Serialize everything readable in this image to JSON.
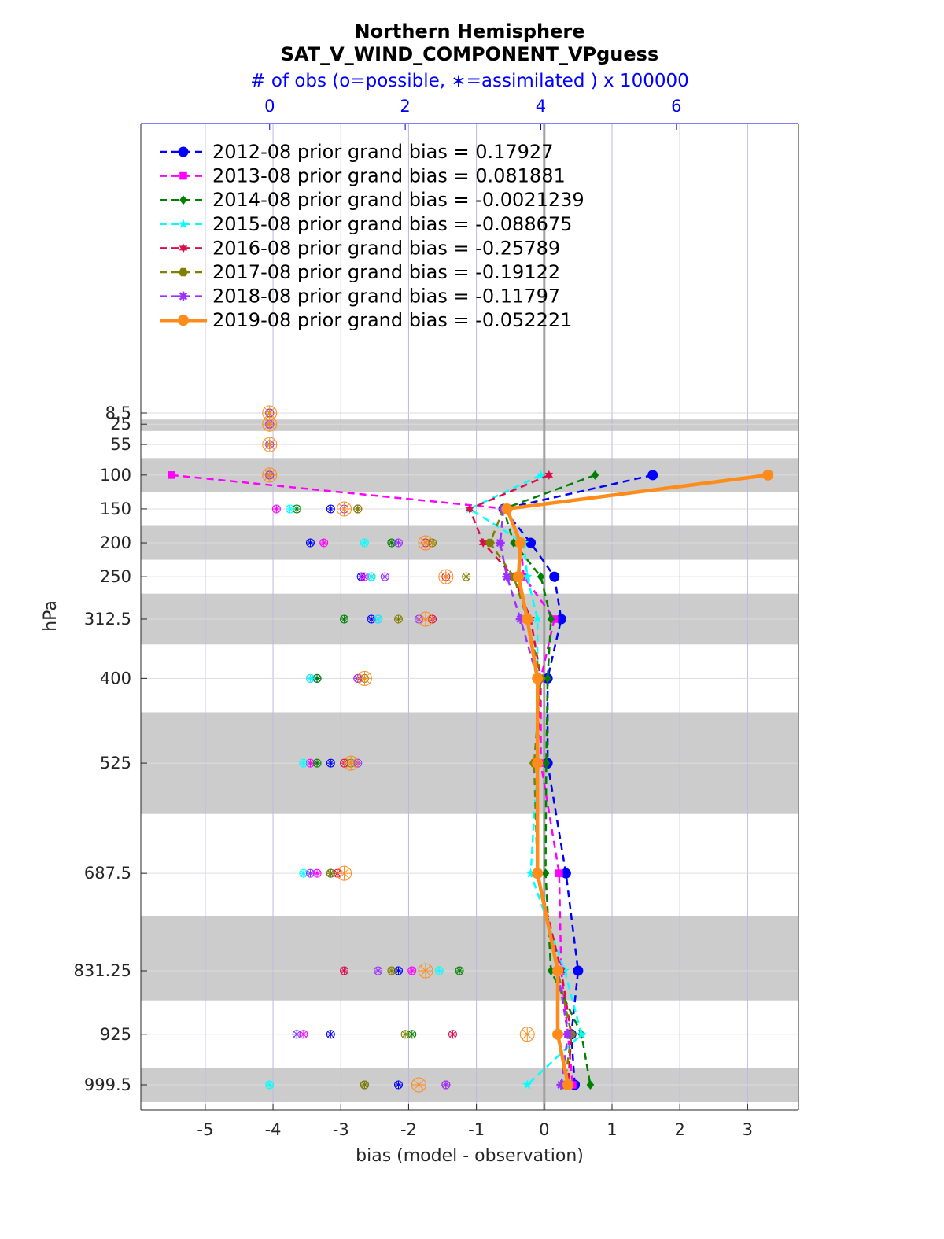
{
  "chart_data": {
    "type": "line",
    "title": "Northern Hemisphere",
    "subtitle": "SAT_V_WIND_COMPONENT_VPguess",
    "top_axis_label": "# of obs (o=possible, ∗=assimilated ) x 100000",
    "xlabel": "bias (model - observation)",
    "ylabel": "hPa",
    "xlim": [
      -5.95,
      3.75
    ],
    "top_xlim": [
      -1.9,
      7.8
    ],
    "x_ticks": [
      -5,
      -4,
      -3,
      -2,
      -1,
      0,
      1,
      2,
      3
    ],
    "top_ticks": [
      0,
      2,
      4,
      6
    ],
    "levels": [
      8.5,
      25,
      55,
      100,
      150,
      200,
      250,
      312.5,
      400,
      525,
      687.5,
      831.25,
      925,
      999.5
    ],
    "level_labels": [
      "8.5",
      "25",
      "55",
      "100",
      "150",
      "200",
      "250",
      "312.5",
      "400",
      "525",
      "687.5",
      "831.25",
      "925",
      "999.5"
    ],
    "shaded_bands": [
      [
        18,
        35
      ],
      [
        75,
        125
      ],
      [
        175,
        225
      ],
      [
        275,
        350
      ],
      [
        450,
        600
      ],
      [
        750,
        875
      ],
      [
        975,
        1025
      ]
    ],
    "series": [
      {
        "name": "2012-08",
        "legend": "2012-08 prior grand bias = 0.17927",
        "color": "#0000ff",
        "marker": "circle",
        "width": 2,
        "values": [
          null,
          null,
          null,
          1.6,
          -0.6,
          -0.2,
          0.15,
          0.25,
          0.05,
          0.05,
          0.32,
          0.5,
          0.4,
          0.45
        ],
        "obs_possible": [
          0,
          0,
          0,
          0,
          0.9,
          0.6,
          1.35,
          1.5,
          0.7,
          0.9,
          0.9,
          1.9,
          0.9,
          1.9
        ]
      },
      {
        "name": "2013-08",
        "legend": "2013-08 prior grand bias = 0.081881",
        "color": "#ff00ff",
        "marker": "square",
        "width": 2,
        "values": [
          null,
          null,
          null,
          -5.5,
          -0.55,
          -0.35,
          -0.3,
          0.15,
          -0.05,
          -0.05,
          0.22,
          0.25,
          0.35,
          0.42
        ],
        "obs_possible": [
          0,
          0,
          0,
          0,
          0.1,
          0.8,
          1.4,
          1.6,
          0.6,
          0.6,
          0.7,
          2.1,
          0.5,
          1.4
        ]
      },
      {
        "name": "2014-08",
        "legend": "2014-08 prior grand bias = -0.0021239",
        "color": "#008000",
        "marker": "diamond",
        "width": 2,
        "values": [
          null,
          null,
          null,
          0.75,
          -0.6,
          -0.45,
          -0.05,
          0.1,
          0.05,
          0.03,
          0.02,
          0.1,
          0.55,
          0.68
        ],
        "obs_possible": [
          0,
          0,
          0,
          0,
          0.4,
          1.8,
          1.5,
          1.1,
          0.7,
          0.7,
          0.9,
          2.8,
          2.1,
          1.4
        ]
      },
      {
        "name": "2015-08",
        "legend": "2015-08 prior grand bias = -0.088675",
        "color": "#00ffff",
        "marker": "star",
        "width": 2,
        "values": [
          null,
          null,
          null,
          -0.05,
          -1.1,
          -0.3,
          -0.25,
          -0.1,
          -0.1,
          -0.1,
          -0.2,
          0.3,
          0.55,
          -0.25
        ],
        "obs_possible": [
          0,
          0,
          0,
          0,
          0.3,
          1.4,
          1.5,
          1.6,
          0.6,
          0.5,
          0.5,
          2.5,
          0.4,
          0
        ]
      },
      {
        "name": "2016-08",
        "legend": "2016-08 prior grand bias = -0.25789",
        "color": "#d80f4b",
        "marker": "star6",
        "width": 2,
        "values": [
          null,
          null,
          null,
          0.07,
          -1.1,
          -0.9,
          -0.45,
          -0.2,
          -0.05,
          -0.1,
          -0.1,
          0.25,
          0.4,
          0.35
        ],
        "obs_possible": [
          0,
          0,
          0,
          0,
          1.3,
          2.3,
          2.6,
          2.4,
          1.3,
          1.1,
          1.0,
          1.1,
          2.7,
          2.6
        ]
      },
      {
        "name": "2017-08",
        "legend": "2017-08 prior grand bias = -0.19122",
        "color": "#808000",
        "marker": "hexagon",
        "width": 2,
        "values": [
          null,
          null,
          null,
          null,
          -0.6,
          -0.8,
          -0.45,
          -0.25,
          -0.05,
          -0.15,
          -0.1,
          0.2,
          0.4,
          0.3
        ],
        "obs_possible": [
          0,
          0,
          0,
          0,
          1.3,
          2.4,
          2.9,
          1.9,
          1.4,
          1.2,
          0.9,
          1.8,
          2.0,
          1.4
        ]
      },
      {
        "name": "2018-08",
        "legend": "2018-08 prior grand bias = -0.11797",
        "color": "#9a32ff",
        "marker": "asterisk",
        "width": 2,
        "values": [
          null,
          null,
          null,
          null,
          -0.6,
          -0.65,
          -0.55,
          -0.35,
          -0.1,
          -0.1,
          -0.1,
          0.2,
          0.35,
          0.25
        ],
        "obs_possible": [
          0,
          0,
          0,
          0,
          1.1,
          1.9,
          1.7,
          2.2,
          1.3,
          1.3,
          0.6,
          1.6,
          0.4,
          2.6
        ]
      },
      {
        "name": "2019-08",
        "legend": "2019-08 prior grand bias = -0.052221",
        "color": "#ff8c1a",
        "marker": "dot",
        "width": 4,
        "values": [
          null,
          null,
          null,
          3.3,
          -0.55,
          -0.35,
          -0.38,
          -0.25,
          -0.1,
          -0.1,
          -0.1,
          0.2,
          0.2,
          0.35
        ],
        "obs_possible": [
          0,
          0,
          0,
          0,
          1.1,
          2.3,
          2.6,
          2.3,
          1.4,
          1.2,
          1.1,
          2.3,
          3.8,
          2.2
        ]
      }
    ]
  }
}
